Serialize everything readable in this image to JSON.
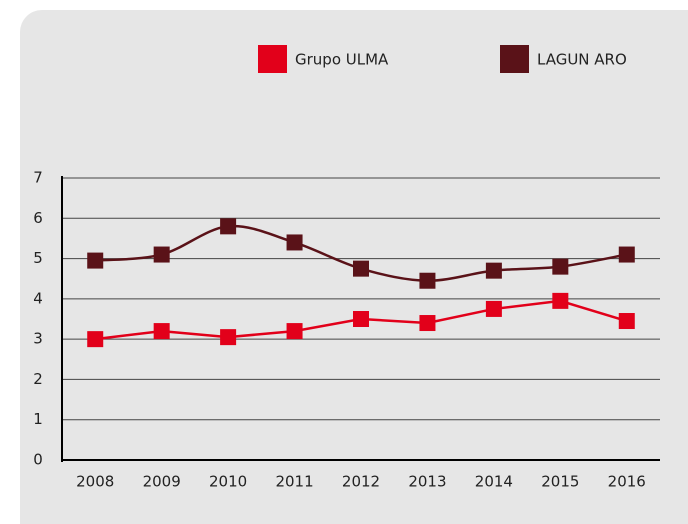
{
  "chart_data": {
    "type": "line",
    "categories": [
      "2008",
      "2009",
      "2010",
      "2011",
      "2012",
      "2013",
      "2014",
      "2015",
      "2016"
    ],
    "series": [
      {
        "name": "Grupo ULMA",
        "color": "#e2001a",
        "smooth": false,
        "values": [
          3.0,
          3.2,
          3.05,
          3.2,
          3.5,
          3.4,
          3.75,
          3.95,
          3.45
        ]
      },
      {
        "name": "LAGUN ARO",
        "color": "#5a1218",
        "smooth": true,
        "values": [
          4.95,
          5.1,
          5.8,
          5.4,
          4.75,
          4.45,
          4.7,
          4.8,
          5.1
        ]
      }
    ],
    "ylim": [
      0,
      7
    ],
    "yticks": [
      0,
      1,
      2,
      3,
      4,
      5,
      6,
      7
    ],
    "grid": true,
    "legend": "top-right"
  }
}
